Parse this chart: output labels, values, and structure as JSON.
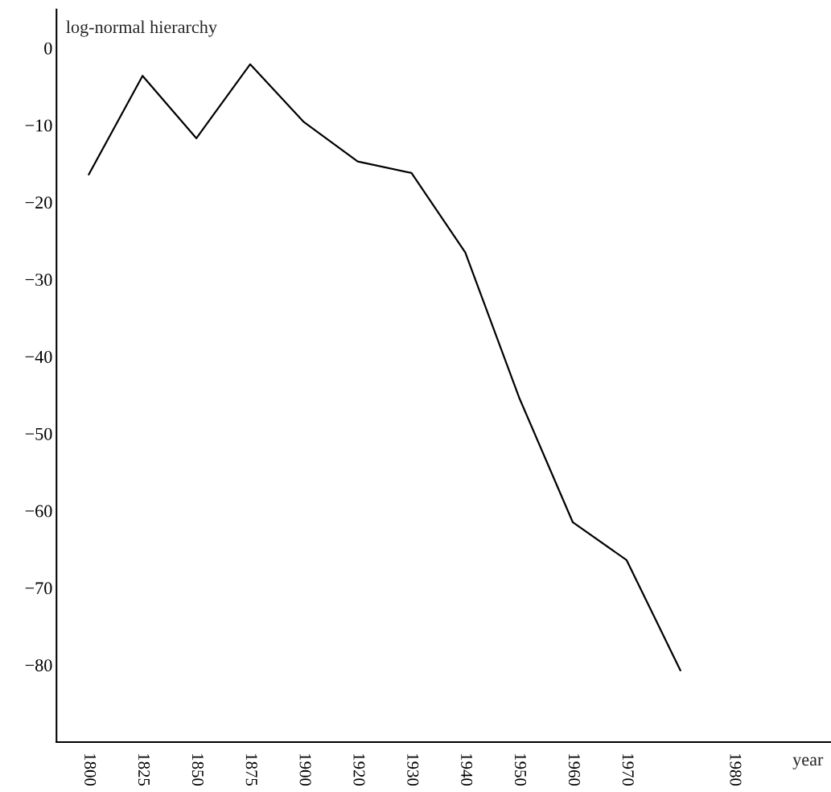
{
  "chart_data": {
    "type": "line",
    "xlabel": "year",
    "ylabel": "log-normal hierarchy",
    "categories": [
      "1800",
      "1825",
      "1850",
      "1875",
      "1900",
      "1920",
      "1930",
      "1940",
      "1950",
      "1960",
      "1970",
      null,
      "1980"
    ],
    "series": [
      {
        "color": "#000000",
        "values": [
          -16.4,
          -3.6,
          -11.7,
          -2.1,
          -9.6,
          -14.7,
          -16.2,
          -26.5,
          -45.3,
          -61.5,
          -66.4,
          -80.7,
          null
        ]
      }
    ],
    "ylim": [
      -90,
      5
    ],
    "yticks": [
      {
        "value": 0,
        "label": "0"
      },
      {
        "value": -10,
        "label": "−10"
      },
      {
        "value": -20,
        "label": "−20"
      },
      {
        "value": -30,
        "label": "−30"
      },
      {
        "value": -40,
        "label": "−40"
      },
      {
        "value": -50,
        "label": "−50"
      },
      {
        "value": -60,
        "label": "−60"
      },
      {
        "value": -70,
        "label": "−70"
      },
      {
        "value": -80,
        "label": "−80"
      }
    ],
    "grid": false,
    "marker": "none",
    "line_style": "solid"
  }
}
